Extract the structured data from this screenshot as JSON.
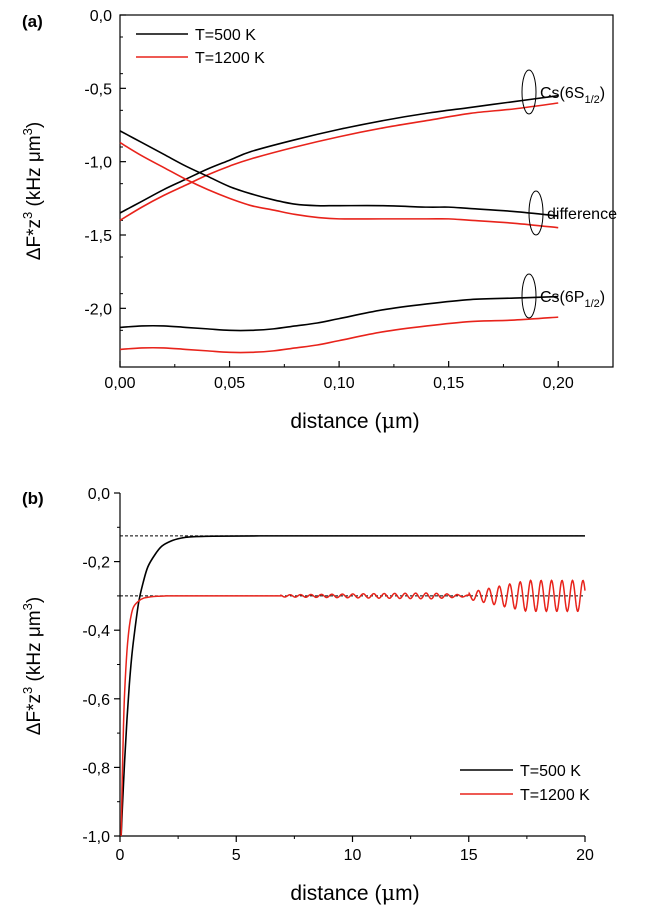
{
  "colors": {
    "series_500K": "#000000",
    "series_1200K": "#e8231b",
    "axis": "#000000",
    "reference_line": "#000000"
  },
  "chart_data": [
    {
      "panel_label": "(a)",
      "type": "line",
      "xlabel_prefix": "distance (",
      "xlabel_mu": "μ",
      "xlabel_suffix": "m)",
      "ylabel_prefix": "ΔF*z",
      "ylabel_sup1": "3",
      "ylabel_mid": " (kHz μm",
      "ylabel_sup2": "3",
      "ylabel_suffix": ")",
      "xlim": [
        0.0,
        0.225
      ],
      "ylim": [
        -2.4,
        0.0
      ],
      "x_ticks": [
        0.0,
        0.05,
        0.1,
        0.15,
        0.2
      ],
      "x_tick_labels": [
        "0,00",
        "0,05",
        "0,10",
        "0,15",
        "0,20"
      ],
      "y_ticks": [
        0.0,
        -0.5,
        -1.0,
        -1.5,
        -2.0
      ],
      "y_tick_labels": [
        "0,0",
        "-0,5",
        "-1,0",
        "-1,5",
        "-2,0"
      ],
      "legend": {
        "position": "top-left",
        "entries": [
          "T=500 K",
          "T=1200 K"
        ]
      },
      "annotations": [
        {
          "key": "6s",
          "text": "Cs(6S",
          "sub": "1/2",
          "close": ")",
          "x": 0.2,
          "y": -0.575
        },
        {
          "key": "diff",
          "text": "difference",
          "sub": "",
          "close": "",
          "x": 0.2,
          "y": -1.41
        },
        {
          "key": "6p",
          "text": "Cs(6P",
          "sub": "1/2",
          "close": ")",
          "x": 0.2,
          "y": -1.99
        }
      ],
      "series": [
        {
          "name": "T=500 K",
          "group": "Cs(6S1/2)",
          "color": "#000000",
          "x": [
            0.0,
            0.01,
            0.02,
            0.03,
            0.04,
            0.05,
            0.06,
            0.08,
            0.1,
            0.12,
            0.14,
            0.16,
            0.18,
            0.2
          ],
          "y": [
            -1.35,
            -1.27,
            -1.19,
            -1.12,
            -1.05,
            -0.99,
            -0.93,
            -0.85,
            -0.78,
            -0.72,
            -0.67,
            -0.63,
            -0.59,
            -0.55
          ]
        },
        {
          "name": "T=1200 K",
          "group": "Cs(6S1/2)",
          "color": "#e8231b",
          "x": [
            0.0,
            0.01,
            0.02,
            0.03,
            0.04,
            0.05,
            0.06,
            0.08,
            0.1,
            0.12,
            0.14,
            0.16,
            0.18,
            0.2
          ],
          "y": [
            -1.4,
            -1.31,
            -1.23,
            -1.16,
            -1.09,
            -1.03,
            -0.98,
            -0.9,
            -0.83,
            -0.77,
            -0.72,
            -0.67,
            -0.64,
            -0.6
          ]
        },
        {
          "name": "T=500 K",
          "group": "difference",
          "color": "#000000",
          "x": [
            0.0,
            0.01,
            0.02,
            0.03,
            0.04,
            0.05,
            0.06,
            0.07,
            0.08,
            0.09,
            0.1,
            0.12,
            0.14,
            0.15,
            0.16,
            0.18,
            0.2
          ],
          "y": [
            -0.79,
            -0.87,
            -0.95,
            -1.03,
            -1.1,
            -1.17,
            -1.22,
            -1.26,
            -1.29,
            -1.3,
            -1.3,
            -1.3,
            -1.31,
            -1.31,
            -1.32,
            -1.34,
            -1.37
          ]
        },
        {
          "name": "T=1200 K",
          "group": "difference",
          "color": "#e8231b",
          "x": [
            0.0,
            0.01,
            0.02,
            0.03,
            0.04,
            0.05,
            0.06,
            0.07,
            0.08,
            0.09,
            0.1,
            0.12,
            0.14,
            0.15,
            0.16,
            0.18,
            0.2
          ],
          "y": [
            -0.87,
            -0.96,
            -1.04,
            -1.12,
            -1.19,
            -1.25,
            -1.3,
            -1.33,
            -1.36,
            -1.38,
            -1.39,
            -1.39,
            -1.39,
            -1.39,
            -1.4,
            -1.42,
            -1.45
          ]
        },
        {
          "name": "T=500 K",
          "group": "Cs(6P1/2)",
          "color": "#000000",
          "x": [
            0.0,
            0.01,
            0.02,
            0.03,
            0.04,
            0.05,
            0.06,
            0.07,
            0.08,
            0.09,
            0.1,
            0.12,
            0.14,
            0.16,
            0.18,
            0.2
          ],
          "y": [
            -2.13,
            -2.12,
            -2.12,
            -2.13,
            -2.14,
            -2.15,
            -2.15,
            -2.14,
            -2.12,
            -2.1,
            -2.07,
            -2.01,
            -1.97,
            -1.94,
            -1.93,
            -1.92
          ]
        },
        {
          "name": "T=1200 K",
          "group": "Cs(6P1/2)",
          "color": "#e8231b",
          "x": [
            0.0,
            0.01,
            0.02,
            0.03,
            0.04,
            0.05,
            0.06,
            0.07,
            0.08,
            0.09,
            0.1,
            0.12,
            0.14,
            0.16,
            0.18,
            0.2
          ],
          "y": [
            -2.28,
            -2.27,
            -2.27,
            -2.28,
            -2.29,
            -2.3,
            -2.3,
            -2.29,
            -2.27,
            -2.25,
            -2.22,
            -2.16,
            -2.12,
            -2.09,
            -2.08,
            -2.06
          ]
        }
      ]
    },
    {
      "panel_label": "(b)",
      "type": "line",
      "xlabel_prefix": "distance (",
      "xlabel_mu": "μ",
      "xlabel_suffix": "m)",
      "ylabel_prefix": "ΔF*z",
      "ylabel_sup1": "3",
      "ylabel_mid": " (kHz μm",
      "ylabel_sup2": "3",
      "ylabel_suffix": ")",
      "xlim": [
        0,
        20
      ],
      "ylim": [
        -1.0,
        0.0
      ],
      "x_ticks": [
        0,
        5,
        10,
        15,
        20
      ],
      "x_tick_labels": [
        "0",
        "5",
        "10",
        "15",
        "20"
      ],
      "y_ticks": [
        0.0,
        -0.2,
        -0.4,
        -0.6,
        -0.8,
        -1.0
      ],
      "y_tick_labels": [
        "0,0",
        "-0,2",
        "-0,4",
        "-0,6",
        "-0,8",
        "-1,0"
      ],
      "legend": {
        "position": "bottom-right",
        "entries": [
          "T=500 K",
          "T=1200 K"
        ]
      },
      "reference_lines": [
        {
          "y": -0.125,
          "style": "dashed"
        },
        {
          "y": -0.3,
          "style": "dashed"
        }
      ],
      "series": [
        {
          "name": "T=500 K",
          "color": "#000000",
          "x": [
            0.05,
            0.1,
            0.2,
            0.3,
            0.4,
            0.5,
            0.6,
            0.8,
            1.0,
            1.2,
            1.5,
            1.8,
            2.2,
            2.6,
            3.0,
            4.0,
            6.0,
            10.0,
            15.0,
            20.0
          ],
          "y": [
            -1.0,
            -0.92,
            -0.78,
            -0.66,
            -0.56,
            -0.48,
            -0.42,
            -0.32,
            -0.26,
            -0.215,
            -0.18,
            -0.155,
            -0.14,
            -0.132,
            -0.128,
            -0.126,
            -0.125,
            -0.125,
            -0.125,
            -0.125
          ]
        },
        {
          "name": "T=1200 K",
          "color": "#e8231b",
          "x": [
            0.05,
            0.1,
            0.15,
            0.2,
            0.3,
            0.4,
            0.5,
            0.6,
            0.8,
            1.0,
            1.3,
            1.6,
            2.0,
            3.0,
            5.0,
            7.5,
            10.0,
            12.5,
            15.0,
            17.5,
            20.0
          ],
          "y": [
            -1.0,
            -0.82,
            -0.68,
            -0.58,
            -0.46,
            -0.39,
            -0.35,
            -0.33,
            -0.315,
            -0.307,
            -0.303,
            -0.301,
            -0.3,
            -0.3,
            -0.3,
            -0.3,
            -0.3,
            -0.3,
            -0.3,
            -0.3,
            -0.3
          ],
          "oscillation": {
            "description_x": [
              6.9,
              20
            ],
            "amplitude_start": 0.003,
            "amplitude_mid": 0.01,
            "amplitude_end": 0.045,
            "period": 0.45
          }
        }
      ]
    }
  ]
}
